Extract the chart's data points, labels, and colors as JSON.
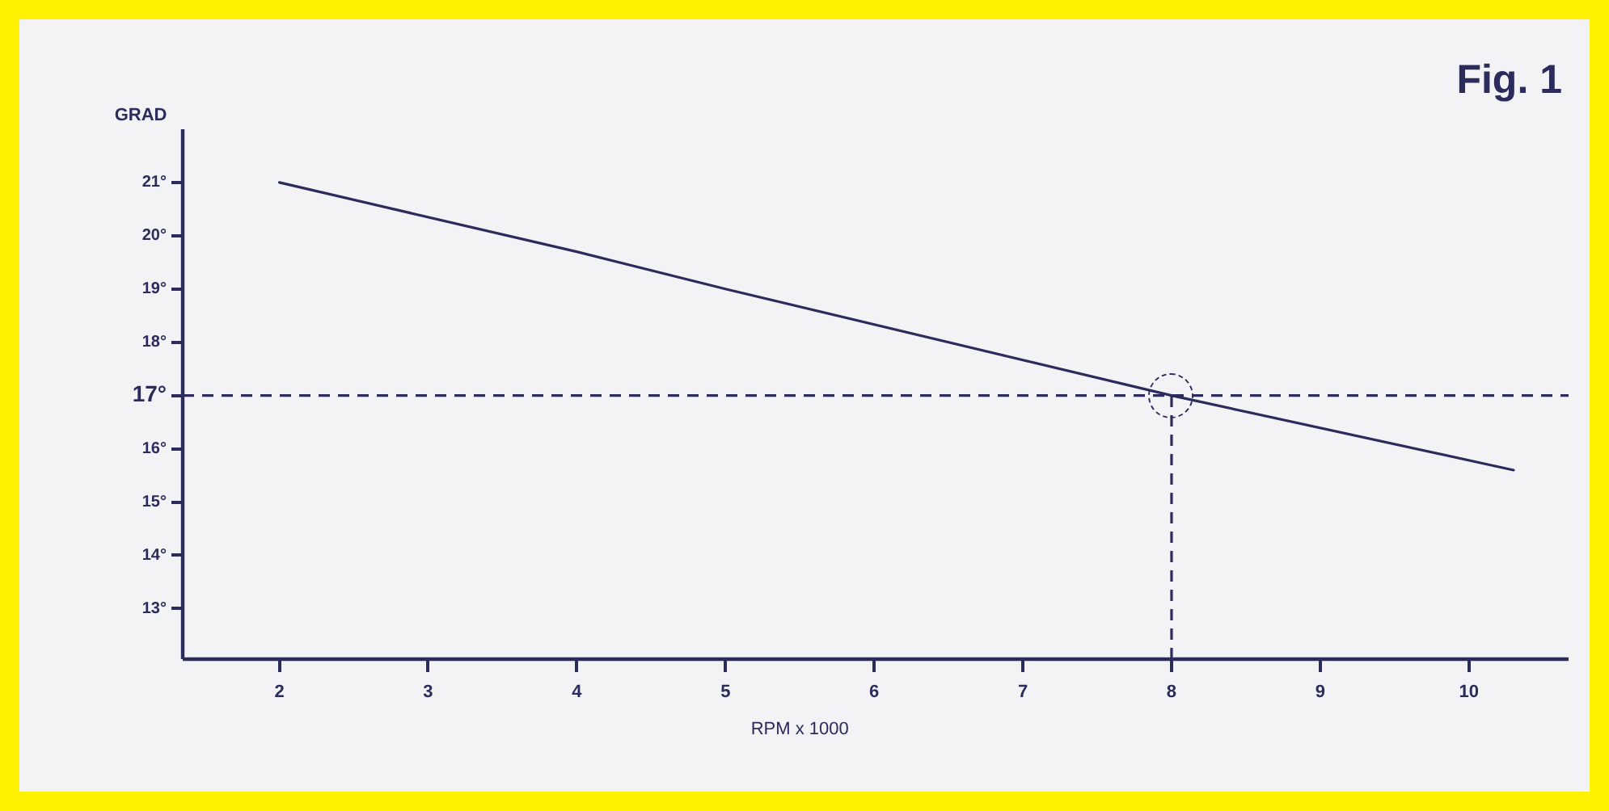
{
  "chart_data": {
    "type": "line",
    "title": "Fig. 1",
    "xlabel": "RPM x 1000",
    "ylabel": "GRAD",
    "x": [
      2,
      4,
      5,
      8,
      10.3
    ],
    "series": [
      {
        "color": "#2b2b5c",
        "values": [
          21,
          19.7,
          19,
          17,
          15.6
        ]
      }
    ],
    "xlim": [
      1.35,
      10.67
    ],
    "xticks": [
      2,
      3,
      4,
      5,
      6,
      7,
      8,
      9,
      10
    ],
    "ylim": [
      12.05,
      22
    ],
    "yticks": [
      {
        "value": 13,
        "label": "13°"
      },
      {
        "value": 14,
        "label": "14°"
      },
      {
        "value": 15,
        "label": "15°"
      },
      {
        "value": 16,
        "label": "16°"
      },
      {
        "value": 17,
        "label": "17°"
      },
      {
        "value": 18,
        "label": "18°"
      },
      {
        "value": 19,
        "label": "19°"
      },
      {
        "value": 20,
        "label": "20°"
      },
      {
        "value": 21,
        "label": "21°"
      }
    ],
    "ref_lines": [
      {
        "axis": "y",
        "value": 17,
        "line_style": "dashed"
      },
      {
        "axis": "x",
        "value": 8,
        "line_style": "dashed"
      }
    ],
    "grid": false,
    "legend": false,
    "marker": "none",
    "line_style": "solid"
  }
}
